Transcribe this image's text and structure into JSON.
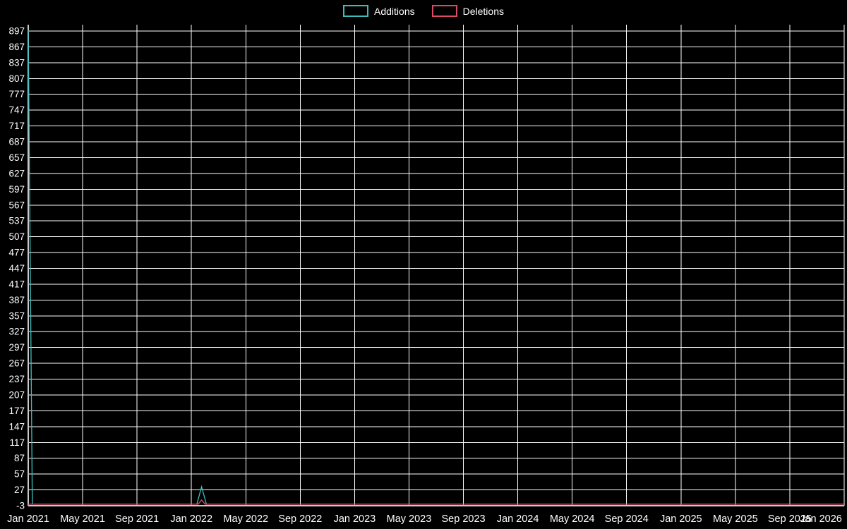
{
  "chart_data": {
    "type": "line",
    "title": "",
    "background": "#000000",
    "grid": true,
    "legend_position": "top-center",
    "x_unit": "months since Jan 2021",
    "xlim_months": [
      0,
      60
    ],
    "x_tick_step_months": 4,
    "x_ticks": [
      "Jan 2021",
      "May 2021",
      "Sep 2021",
      "Jan 2022",
      "May 2022",
      "Sep 2022",
      "Jan 2023",
      "May 2023",
      "Sep 2023",
      "Jan 2024",
      "May 2024",
      "Sep 2024",
      "Jan 2025",
      "May 2025",
      "Sep 2025",
      "Jan 2026"
    ],
    "y_ticks": [
      -3,
      27,
      57,
      87,
      117,
      147,
      177,
      207,
      237,
      267,
      297,
      327,
      357,
      387,
      417,
      447,
      477,
      507,
      537,
      567,
      597,
      627,
      657,
      687,
      717,
      747,
      777,
      807,
      837,
      867,
      897
    ],
    "ylim": [
      -3,
      909
    ],
    "series": [
      {
        "name": "Additions",
        "color": "#3fbdbd",
        "points": [
          {
            "x": 0,
            "y": 900
          },
          {
            "x": 0.3,
            "y": 0
          },
          {
            "x": 12.4,
            "y": 0
          },
          {
            "x": 12.75,
            "y": 33
          },
          {
            "x": 13.1,
            "y": 0
          },
          {
            "x": 60,
            "y": 0
          }
        ]
      },
      {
        "name": "Deletions",
        "color": "#dd4b63",
        "points": [
          {
            "x": 0,
            "y": 0
          },
          {
            "x": 12.5,
            "y": 0
          },
          {
            "x": 12.75,
            "y": 8
          },
          {
            "x": 13,
            "y": 0
          },
          {
            "x": 60,
            "y": 0
          }
        ]
      }
    ]
  }
}
